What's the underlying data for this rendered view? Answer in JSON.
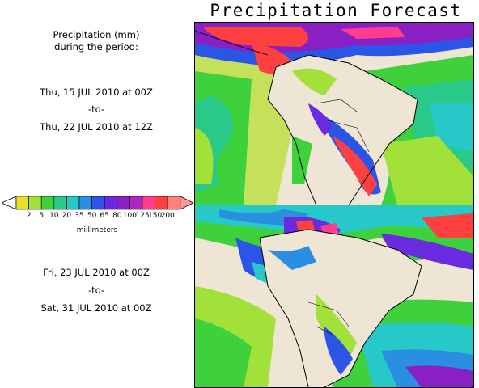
{
  "title": "Precipitation Forecast",
  "description": {
    "line1": "Precipitation (mm)",
    "line2": "during the period:"
  },
  "period1": {
    "start": "Thu, 15 JUL 2010 at 00Z",
    "sep": "-to-",
    "end": "Thu, 22 JUL 2010 at 12Z"
  },
  "period2": {
    "start": "Fri, 23 JUL 2010 at 00Z",
    "sep": "-to-",
    "end": "Sat, 31 JUL 2010 at 00Z"
  },
  "legend": {
    "unit": "millimeters",
    "ticks": [
      "2",
      "5",
      "10",
      "20",
      "35",
      "50",
      "65",
      "80",
      "100",
      "125",
      "150",
      "200"
    ],
    "colors": [
      "#e6e02a",
      "#a2e03a",
      "#3fd13b",
      "#29c98a",
      "#26c9c7",
      "#2a8fe0",
      "#2a55e6",
      "#6a2ae0",
      "#8a1fc4",
      "#b024c0",
      "#ff3d8c",
      "#ff4040",
      "#ff7f7f"
    ]
  },
  "colors": {
    "land": "#eee5d4",
    "border": "#000000"
  }
}
